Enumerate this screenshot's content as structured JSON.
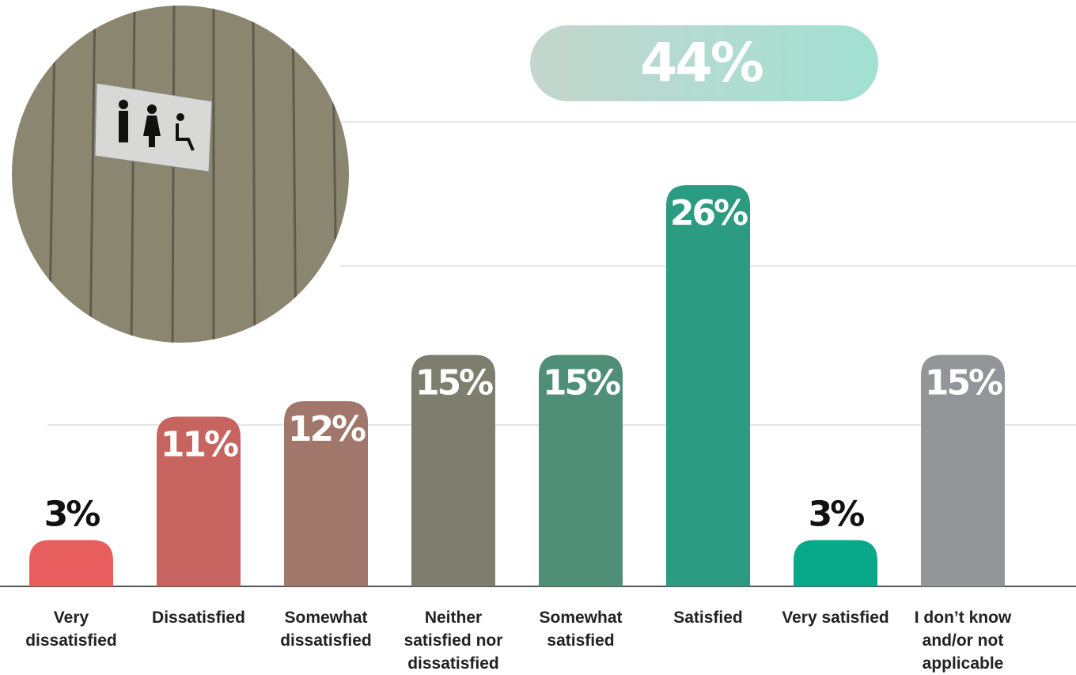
{
  "chart_data": {
    "type": "bar",
    "annotation": "44%",
    "categories": [
      "Very dissatisfied",
      "Dissatisfied",
      "Somewhat dissatisfied",
      "Neither satisfied nor dissatisfied",
      "Somewhat satisfied",
      "Satisfied",
      "Very satisfied",
      "I don’t know and/or not applicable"
    ],
    "values": [
      3,
      11,
      12,
      15,
      15,
      26,
      3,
      15
    ],
    "value_labels": [
      "3%",
      "11%",
      "12%",
      "15%",
      "15%",
      "26%",
      "3%",
      "15%"
    ],
    "colors": [
      "#e85d5d",
      "#c7645f",
      "#a1776b",
      "#7e7e6f",
      "#4f8f78",
      "#2b9b82",
      "#08a98b",
      "#949599"
    ],
    "ylim": [
      0,
      38
    ]
  }
}
